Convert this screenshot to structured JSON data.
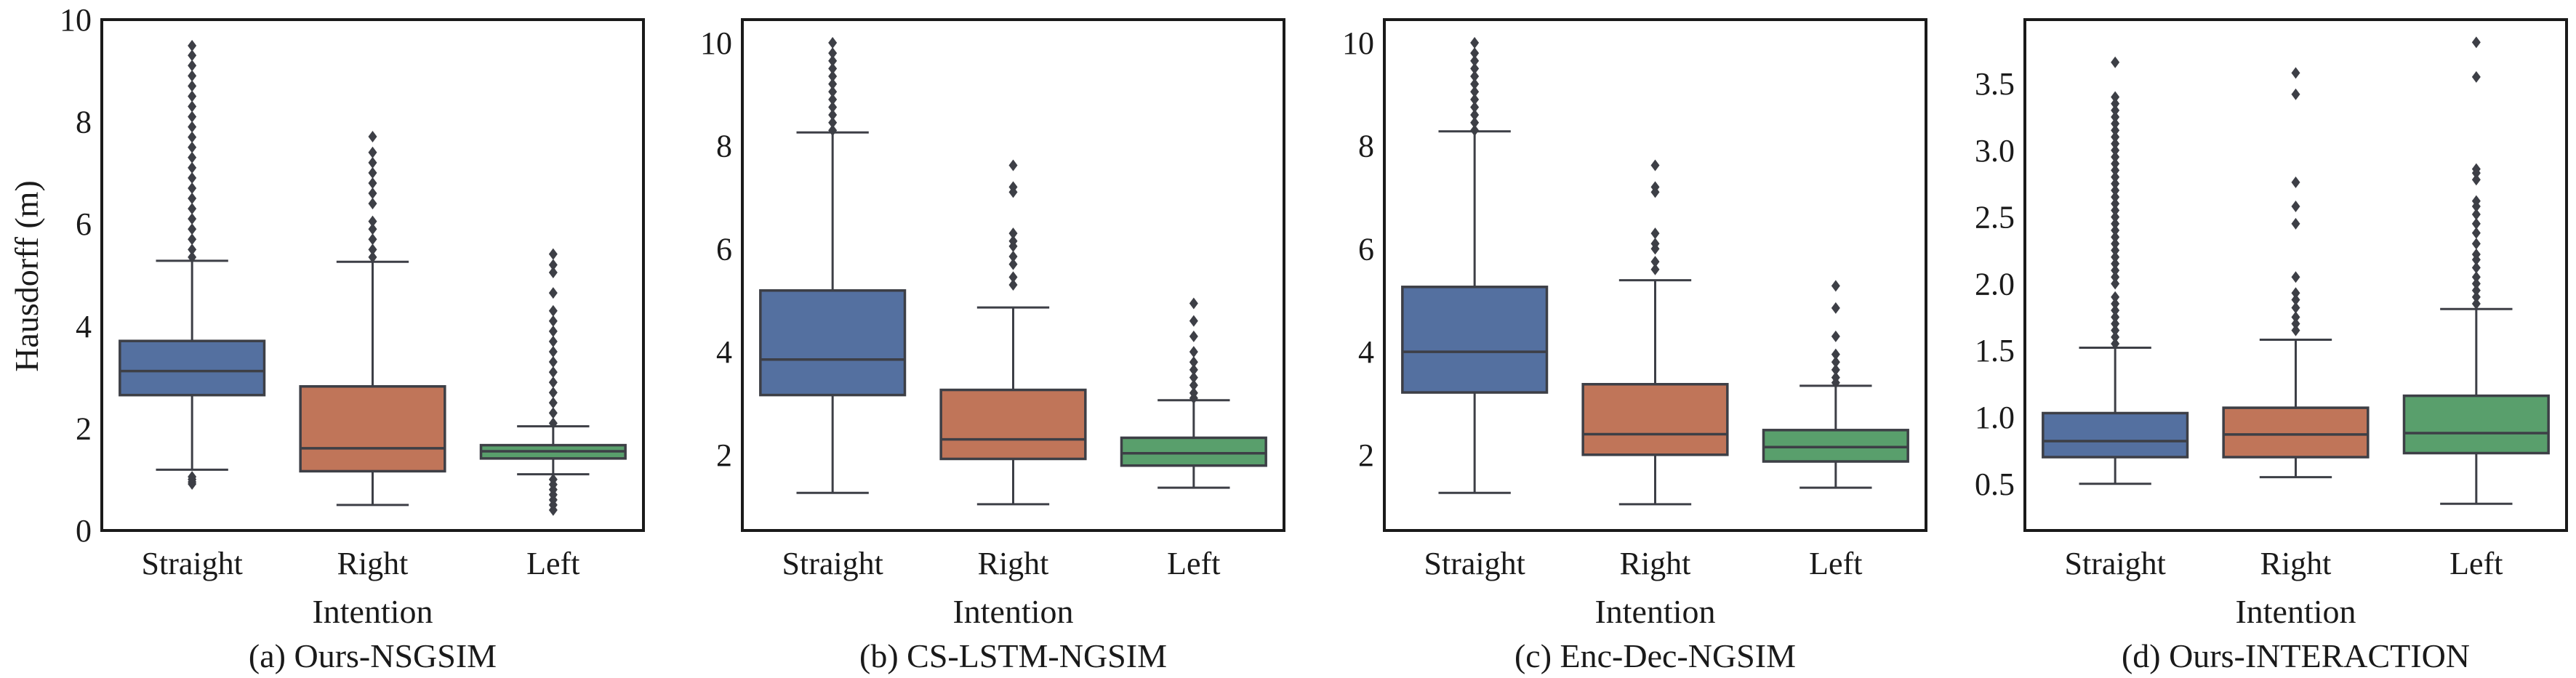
{
  "figure": {
    "line_color": "#3d3f46",
    "frame_color": "#1a1a1a"
  },
  "chart_data": [
    {
      "type": "box",
      "caption": "(a) Ours-NSGSIM",
      "xlabel": "Intention",
      "ylabel": "Hausdorff (m)",
      "ylim": [
        0,
        10
      ],
      "yticks": [
        0,
        2,
        4,
        6,
        8,
        10
      ],
      "ytick_labels": [
        "0",
        "2",
        "4",
        "6",
        "8",
        "10"
      ],
      "categories": [
        "Straight",
        "Right",
        "Left"
      ],
      "colors": [
        "#5470a0",
        "#c07559",
        "#599f6c"
      ],
      "series": [
        {
          "name": "Straight",
          "whisker_low": 1.19,
          "q1": 2.65,
          "median": 3.12,
          "q3": 3.71,
          "whisker_high": 5.28,
          "outliers": [
            0.91,
            0.95,
            1.0,
            1.05,
            5.35,
            5.5,
            5.7,
            5.9,
            6.1,
            6.3,
            6.5,
            6.7,
            6.9,
            7.1,
            7.3,
            7.5,
            7.7,
            7.9,
            8.1,
            8.3,
            8.5,
            8.7,
            8.9,
            9.1,
            9.3,
            9.49
          ]
        },
        {
          "name": "Right",
          "whisker_low": 0.5,
          "q1": 1.16,
          "median": 1.61,
          "q3": 2.82,
          "whisker_high": 5.26,
          "outliers": [
            5.35,
            5.5,
            5.7,
            5.9,
            6.05,
            6.4,
            6.6,
            6.8,
            7.0,
            7.2,
            7.4,
            7.71
          ]
        },
        {
          "name": "Left",
          "whisker_low": 1.1,
          "q1": 1.41,
          "median": 1.55,
          "q3": 1.67,
          "whisker_high": 2.04,
          "outliers": [
            0.4,
            0.5,
            0.6,
            0.7,
            0.8,
            0.9,
            1.0,
            2.1,
            2.3,
            2.5,
            2.7,
            2.9,
            3.1,
            3.3,
            3.5,
            3.7,
            3.9,
            4.1,
            4.3,
            4.65,
            5.05,
            5.2,
            5.41
          ]
        }
      ]
    },
    {
      "type": "box",
      "caption": "(b) CS-LSTM-NGSIM",
      "xlabel": "Intention",
      "ylabel": "",
      "ylim": [
        0.53,
        10.45
      ],
      "yticks": [
        2,
        4,
        6,
        8,
        10
      ],
      "ytick_labels": [
        "2",
        "4",
        "6",
        "8",
        "10"
      ],
      "categories": [
        "Straight",
        "Right",
        "Left"
      ],
      "colors": [
        "#5470a0",
        "#c07559",
        "#599f6c"
      ],
      "series": [
        {
          "name": "Straight",
          "whisker_low": 1.26,
          "q1": 3.16,
          "median": 3.85,
          "q3": 5.19,
          "whisker_high": 8.26,
          "outliers": [
            8.3,
            8.45,
            8.6,
            8.75,
            8.9,
            9.05,
            9.2,
            9.35,
            9.5,
            9.65,
            9.8,
            10.0
          ]
        },
        {
          "name": "Right",
          "whisker_low": 1.04,
          "q1": 1.92,
          "median": 2.3,
          "q3": 3.26,
          "whisker_high": 4.86,
          "outliers": [
            5.3,
            5.45,
            5.7,
            5.85,
            6.05,
            6.15,
            6.3,
            7.1,
            7.2,
            7.62
          ]
        },
        {
          "name": "Left",
          "whisker_low": 1.36,
          "q1": 1.79,
          "median": 2.03,
          "q3": 2.33,
          "whisker_high": 3.06,
          "outliers": [
            3.1,
            3.2,
            3.35,
            3.5,
            3.65,
            3.8,
            4.0,
            4.3,
            4.6,
            4.94
          ]
        }
      ]
    },
    {
      "type": "box",
      "caption": "(c) Enc-Dec-NGSIM",
      "xlabel": "Intention",
      "ylabel": "",
      "ylim": [
        0.53,
        10.45
      ],
      "yticks": [
        2,
        4,
        6,
        8,
        10
      ],
      "ytick_labels": [
        "2",
        "4",
        "6",
        "8",
        "10"
      ],
      "categories": [
        "Straight",
        "Right",
        "Left"
      ],
      "colors": [
        "#5470a0",
        "#c07559",
        "#599f6c"
      ],
      "series": [
        {
          "name": "Straight",
          "whisker_low": 1.26,
          "q1": 3.21,
          "median": 4.0,
          "q3": 5.26,
          "whisker_high": 8.28,
          "outliers": [
            8.3,
            8.45,
            8.6,
            8.75,
            8.9,
            9.05,
            9.2,
            9.35,
            9.5,
            9.65,
            9.8,
            10.0
          ]
        },
        {
          "name": "Right",
          "whisker_low": 1.04,
          "q1": 2.0,
          "median": 2.4,
          "q3": 3.37,
          "whisker_high": 5.39,
          "outliers": [
            5.6,
            5.75,
            6.0,
            6.1,
            6.3,
            7.1,
            7.2,
            7.62
          ]
        },
        {
          "name": "Left",
          "whisker_low": 1.36,
          "q1": 1.87,
          "median": 2.15,
          "q3": 2.48,
          "whisker_high": 3.34,
          "outliers": [
            3.4,
            3.5,
            3.65,
            3.8,
            3.95,
            4.3,
            4.85,
            5.28
          ]
        }
      ]
    },
    {
      "type": "box",
      "caption": "(d) Ours-INTERACTION",
      "xlabel": "Intention",
      "ylabel": "",
      "ylim": [
        0.15,
        3.98
      ],
      "yticks": [
        0.5,
        1.0,
        1.5,
        2.0,
        2.5,
        3.0,
        3.5
      ],
      "ytick_labels": [
        "0.5",
        "1.0",
        "1.5",
        "2.0",
        "2.5",
        "3.0",
        "3.5"
      ],
      "categories": [
        "Straight",
        "Right",
        "Left"
      ],
      "colors": [
        "#5470a0",
        "#c07559",
        "#599f6c"
      ],
      "series": [
        {
          "name": "Straight",
          "whisker_low": 0.5,
          "q1": 0.7,
          "median": 0.82,
          "q3": 1.03,
          "whisker_high": 1.52,
          "outliers": [
            1.55,
            1.6,
            1.65,
            1.7,
            1.75,
            1.8,
            1.85,
            1.9,
            2.0,
            2.05,
            2.1,
            2.15,
            2.2,
            2.25,
            2.3,
            2.35,
            2.4,
            2.45,
            2.5,
            2.55,
            2.6,
            2.65,
            2.7,
            2.75,
            2.8,
            2.85,
            2.9,
            2.95,
            3.0,
            3.05,
            3.1,
            3.15,
            3.2,
            3.25,
            3.3,
            3.35,
            3.4,
            3.66
          ]
        },
        {
          "name": "Right",
          "whisker_low": 0.55,
          "q1": 0.7,
          "median": 0.87,
          "q3": 1.07,
          "whisker_high": 1.58,
          "outliers": [
            1.65,
            1.7,
            1.75,
            1.82,
            1.88,
            1.93,
            2.05,
            2.45,
            2.58,
            2.76,
            3.42,
            3.58
          ]
        },
        {
          "name": "Left",
          "whisker_low": 0.35,
          "q1": 0.73,
          "median": 0.88,
          "q3": 1.16,
          "whisker_high": 1.81,
          "outliers": [
            1.85,
            1.9,
            1.95,
            2.0,
            2.05,
            2.12,
            2.18,
            2.22,
            2.3,
            2.38,
            2.45,
            2.52,
            2.58,
            2.62,
            2.78,
            2.83,
            2.86,
            3.55,
            3.81
          ]
        }
      ]
    }
  ]
}
